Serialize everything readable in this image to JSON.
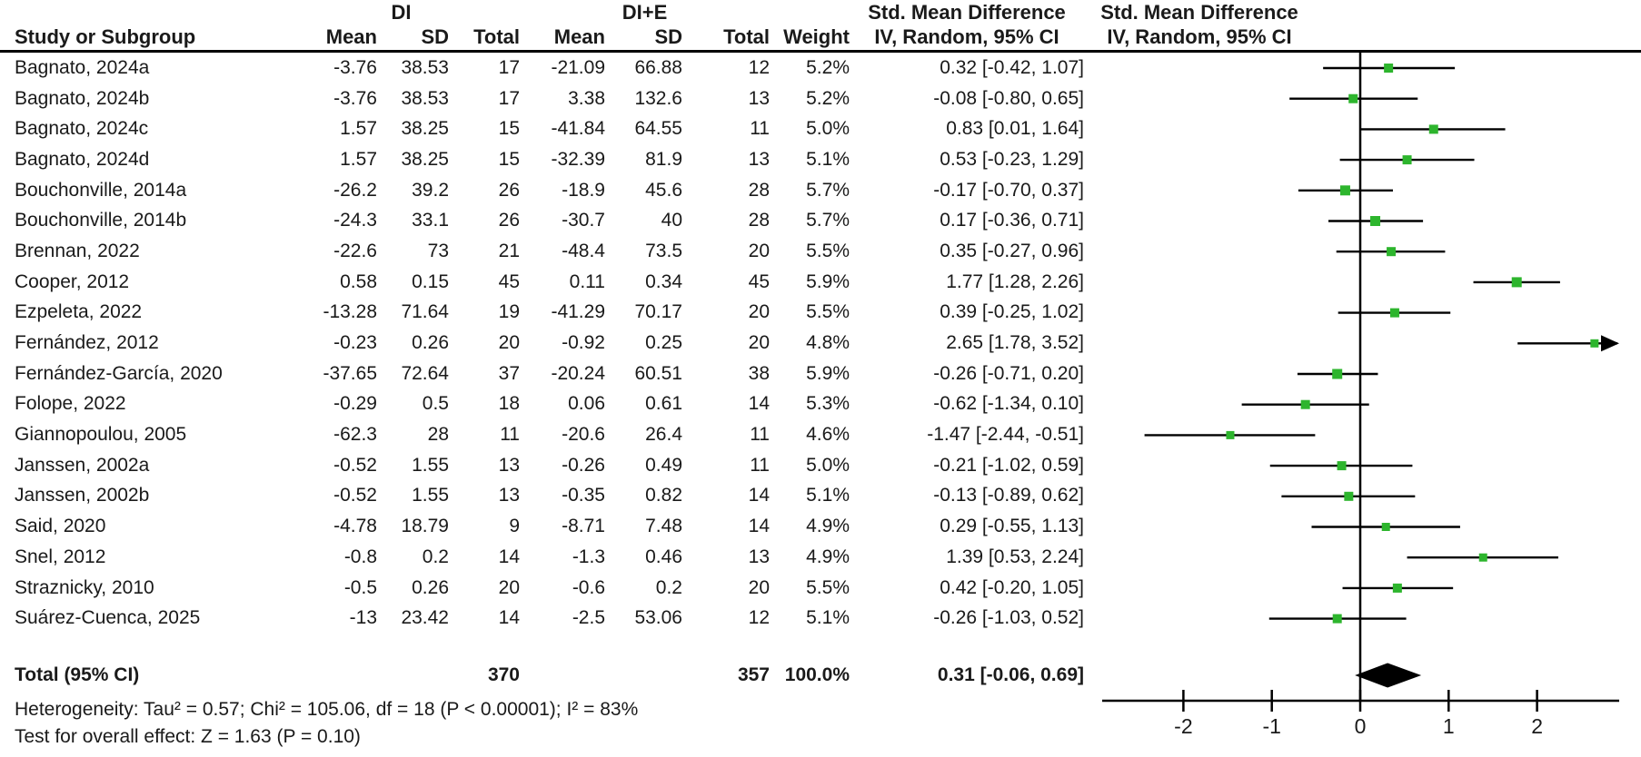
{
  "chart_data": {
    "type": "forest",
    "group1_label": "DI",
    "group2_label": "DI+E",
    "columns": [
      "Study or Subgroup",
      "Mean",
      "SD",
      "Total",
      "Mean",
      "SD",
      "Total",
      "Weight",
      "IV, Random, 95% CI"
    ],
    "effect_header": "Std. Mean Difference",
    "effect_subheader": "IV, Random, 95% CI",
    "marker_color": "#2db52d",
    "axis": {
      "ticks": [
        -2,
        -1,
        0,
        1,
        2
      ],
      "tick_labels": [
        "-2",
        "-1",
        "0",
        "1",
        "2"
      ],
      "min": -2.92,
      "max": 2.93
    },
    "studies": [
      {
        "name": "Bagnato, 2024a",
        "mean1": "-3.76",
        "sd1": "38.53",
        "total1": "17",
        "mean2": "-21.09",
        "sd2": "66.88",
        "total2": "12",
        "weight": "5.2%",
        "ci_text": "0.32 [-0.42, 1.07]",
        "est": 0.32,
        "lo": -0.42,
        "hi": 1.07
      },
      {
        "name": "Bagnato, 2024b",
        "mean1": "-3.76",
        "sd1": "38.53",
        "total1": "17",
        "mean2": "3.38",
        "sd2": "132.6",
        "total2": "13",
        "weight": "5.2%",
        "ci_text": "-0.08 [-0.80, 0.65]",
        "est": -0.08,
        "lo": -0.8,
        "hi": 0.65
      },
      {
        "name": "Bagnato, 2024c",
        "mean1": "1.57",
        "sd1": "38.25",
        "total1": "15",
        "mean2": "-41.84",
        "sd2": "64.55",
        "total2": "11",
        "weight": "5.0%",
        "ci_text": "0.83 [0.01, 1.64]",
        "est": 0.83,
        "lo": 0.01,
        "hi": 1.64
      },
      {
        "name": "Bagnato, 2024d",
        "mean1": "1.57",
        "sd1": "38.25",
        "total1": "15",
        "mean2": "-32.39",
        "sd2": "81.9",
        "total2": "13",
        "weight": "5.1%",
        "ci_text": "0.53 [-0.23, 1.29]",
        "est": 0.53,
        "lo": -0.23,
        "hi": 1.29
      },
      {
        "name": "Bouchonville, 2014a",
        "mean1": "-26.2",
        "sd1": "39.2",
        "total1": "26",
        "mean2": "-18.9",
        "sd2": "45.6",
        "total2": "28",
        "weight": "5.7%",
        "ci_text": "-0.17 [-0.70, 0.37]",
        "est": -0.17,
        "lo": -0.7,
        "hi": 0.37
      },
      {
        "name": "Bouchonville, 2014b",
        "mean1": "-24.3",
        "sd1": "33.1",
        "total1": "26",
        "mean2": "-30.7",
        "sd2": "40",
        "total2": "28",
        "weight": "5.7%",
        "ci_text": "0.17 [-0.36, 0.71]",
        "est": 0.17,
        "lo": -0.36,
        "hi": 0.71
      },
      {
        "name": "Brennan, 2022",
        "mean1": "-22.6",
        "sd1": "73",
        "total1": "21",
        "mean2": "-48.4",
        "sd2": "73.5",
        "total2": "20",
        "weight": "5.5%",
        "ci_text": "0.35 [-0.27, 0.96]",
        "est": 0.35,
        "lo": -0.27,
        "hi": 0.96
      },
      {
        "name": "Cooper, 2012",
        "mean1": "0.58",
        "sd1": "0.15",
        "total1": "45",
        "mean2": "0.11",
        "sd2": "0.34",
        "total2": "45",
        "weight": "5.9%",
        "ci_text": "1.77 [1.28, 2.26]",
        "est": 1.77,
        "lo": 1.28,
        "hi": 2.26
      },
      {
        "name": "Ezpeleta, 2022",
        "mean1": "-13.28",
        "sd1": "71.64",
        "total1": "19",
        "mean2": "-41.29",
        "sd2": "70.17",
        "total2": "20",
        "weight": "5.5%",
        "ci_text": "0.39 [-0.25, 1.02]",
        "est": 0.39,
        "lo": -0.25,
        "hi": 1.02
      },
      {
        "name": "Fernández, 2012",
        "mean1": "-0.23",
        "sd1": "0.26",
        "total1": "20",
        "mean2": "-0.92",
        "sd2": "0.25",
        "total2": "20",
        "weight": "4.8%",
        "ci_text": "2.65 [1.78, 3.52]",
        "est": 2.65,
        "lo": 1.78,
        "hi": 3.52
      },
      {
        "name": "Fernández-García, 2020",
        "mean1": "-37.65",
        "sd1": "72.64",
        "total1": "37",
        "mean2": "-20.24",
        "sd2": "60.51",
        "total2": "38",
        "weight": "5.9%",
        "ci_text": "-0.26 [-0.71, 0.20]",
        "est": -0.26,
        "lo": -0.71,
        "hi": 0.2
      },
      {
        "name": "Folope, 2022",
        "mean1": "-0.29",
        "sd1": "0.5",
        "total1": "18",
        "mean2": "0.06",
        "sd2": "0.61",
        "total2": "14",
        "weight": "5.3%",
        "ci_text": "-0.62 [-1.34, 0.10]",
        "est": -0.62,
        "lo": -1.34,
        "hi": 0.1
      },
      {
        "name": "Giannopoulou, 2005",
        "mean1": "-62.3",
        "sd1": "28",
        "total1": "11",
        "mean2": "-20.6",
        "sd2": "26.4",
        "total2": "11",
        "weight": "4.6%",
        "ci_text": "-1.47 [-2.44, -0.51]",
        "est": -1.47,
        "lo": -2.44,
        "hi": -0.51
      },
      {
        "name": "Janssen, 2002a",
        "mean1": "-0.52",
        "sd1": "1.55",
        "total1": "13",
        "mean2": "-0.26",
        "sd2": "0.49",
        "total2": "11",
        "weight": "5.0%",
        "ci_text": "-0.21 [-1.02, 0.59]",
        "est": -0.21,
        "lo": -1.02,
        "hi": 0.59
      },
      {
        "name": "Janssen, 2002b",
        "mean1": "-0.52",
        "sd1": "1.55",
        "total1": "13",
        "mean2": "-0.35",
        "sd2": "0.82",
        "total2": "14",
        "weight": "5.1%",
        "ci_text": "-0.13 [-0.89, 0.62]",
        "est": -0.13,
        "lo": -0.89,
        "hi": 0.62
      },
      {
        "name": "Said, 2020",
        "mean1": "-4.78",
        "sd1": "18.79",
        "total1": "9",
        "mean2": "-8.71",
        "sd2": "7.48",
        "total2": "14",
        "weight": "4.9%",
        "ci_text": "0.29 [-0.55, 1.13]",
        "est": 0.29,
        "lo": -0.55,
        "hi": 1.13
      },
      {
        "name": "Snel, 2012",
        "mean1": "-0.8",
        "sd1": "0.2",
        "total1": "14",
        "mean2": "-1.3",
        "sd2": "0.46",
        "total2": "13",
        "weight": "4.9%",
        "ci_text": "1.39 [0.53, 2.24]",
        "est": 1.39,
        "lo": 0.53,
        "hi": 2.24
      },
      {
        "name": "Straznicky, 2010",
        "mean1": "-0.5",
        "sd1": "0.26",
        "total1": "20",
        "mean2": "-0.6",
        "sd2": "0.2",
        "total2": "20",
        "weight": "5.5%",
        "ci_text": "0.42 [-0.20, 1.05]",
        "est": 0.42,
        "lo": -0.2,
        "hi": 1.05
      },
      {
        "name": "Suárez-Cuenca, 2025",
        "mean1": "-13",
        "sd1": "23.42",
        "total1": "14",
        "mean2": "-2.5",
        "sd2": "53.06",
        "total2": "12",
        "weight": "5.1%",
        "ci_text": "-0.26 [-1.03, 0.52]",
        "est": -0.26,
        "lo": -1.03,
        "hi": 0.52
      }
    ],
    "total": {
      "label": "Total (95% CI)",
      "total1": "370",
      "total2": "357",
      "weight": "100.0%",
      "ci_text": "0.31 [-0.06, 0.69]",
      "est": 0.31,
      "lo": -0.06,
      "hi": 0.69
    },
    "footnotes": {
      "heterogeneity": "Heterogeneity: Tau² = 0.57; Chi² = 105.06, df = 18 (P < 0.00001); I² = 83%",
      "overall_effect": "Test for overall effect: Z = 1.63 (P = 0.10)"
    }
  }
}
